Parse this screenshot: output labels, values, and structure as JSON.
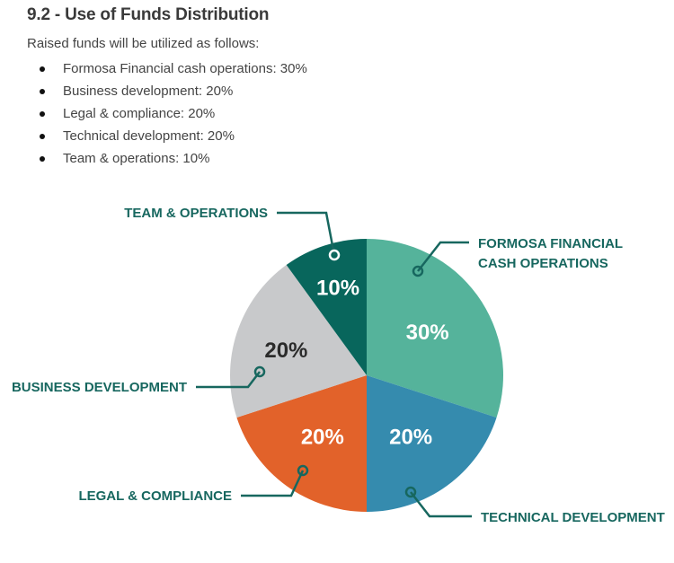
{
  "header": {
    "title": "9.2 - Use of Funds Distribution",
    "intro": "Raised funds will be utilized as follows:"
  },
  "list": [
    "Formosa Financial cash operations: 30%",
    "Business development: 20%",
    "Legal & compliance: 20%",
    "Technical development: 20%",
    "Team & operations: 10%"
  ],
  "chart_data": {
    "type": "pie",
    "title": "",
    "start": "top, clockwise",
    "slices": [
      {
        "name": "Formosa Financial Cash Operations",
        "label_lines": [
          "FORMOSA FINANCIAL",
          "CASH OPERATIONS"
        ],
        "value": 30,
        "pct_label": "30%",
        "color": "#55b39b",
        "text_color": "#ffffff"
      },
      {
        "name": "Technical Development",
        "label_lines": [
          "TECHNICAL DEVELOPMENT"
        ],
        "value": 20,
        "pct_label": "20%",
        "color": "#358bae",
        "text_color": "#ffffff"
      },
      {
        "name": "Legal & Compliance",
        "label_lines": [
          "LEGAL & COMPLIANCE"
        ],
        "value": 20,
        "pct_label": "20%",
        "color": "#e2622a",
        "text_color": "#ffffff"
      },
      {
        "name": "Business Development",
        "label_lines": [
          "BUSINESS DEVELOPMENT"
        ],
        "value": 20,
        "pct_label": "20%",
        "color": "#c8c9cb",
        "text_color": "#2b2b2b"
      },
      {
        "name": "Team & Operations",
        "label_lines": [
          "TEAM & OPERATIONS"
        ],
        "value": 10,
        "pct_label": "10%",
        "color": "#08665c",
        "text_color": "#ffffff"
      }
    ],
    "callout_color": "#17675f"
  }
}
